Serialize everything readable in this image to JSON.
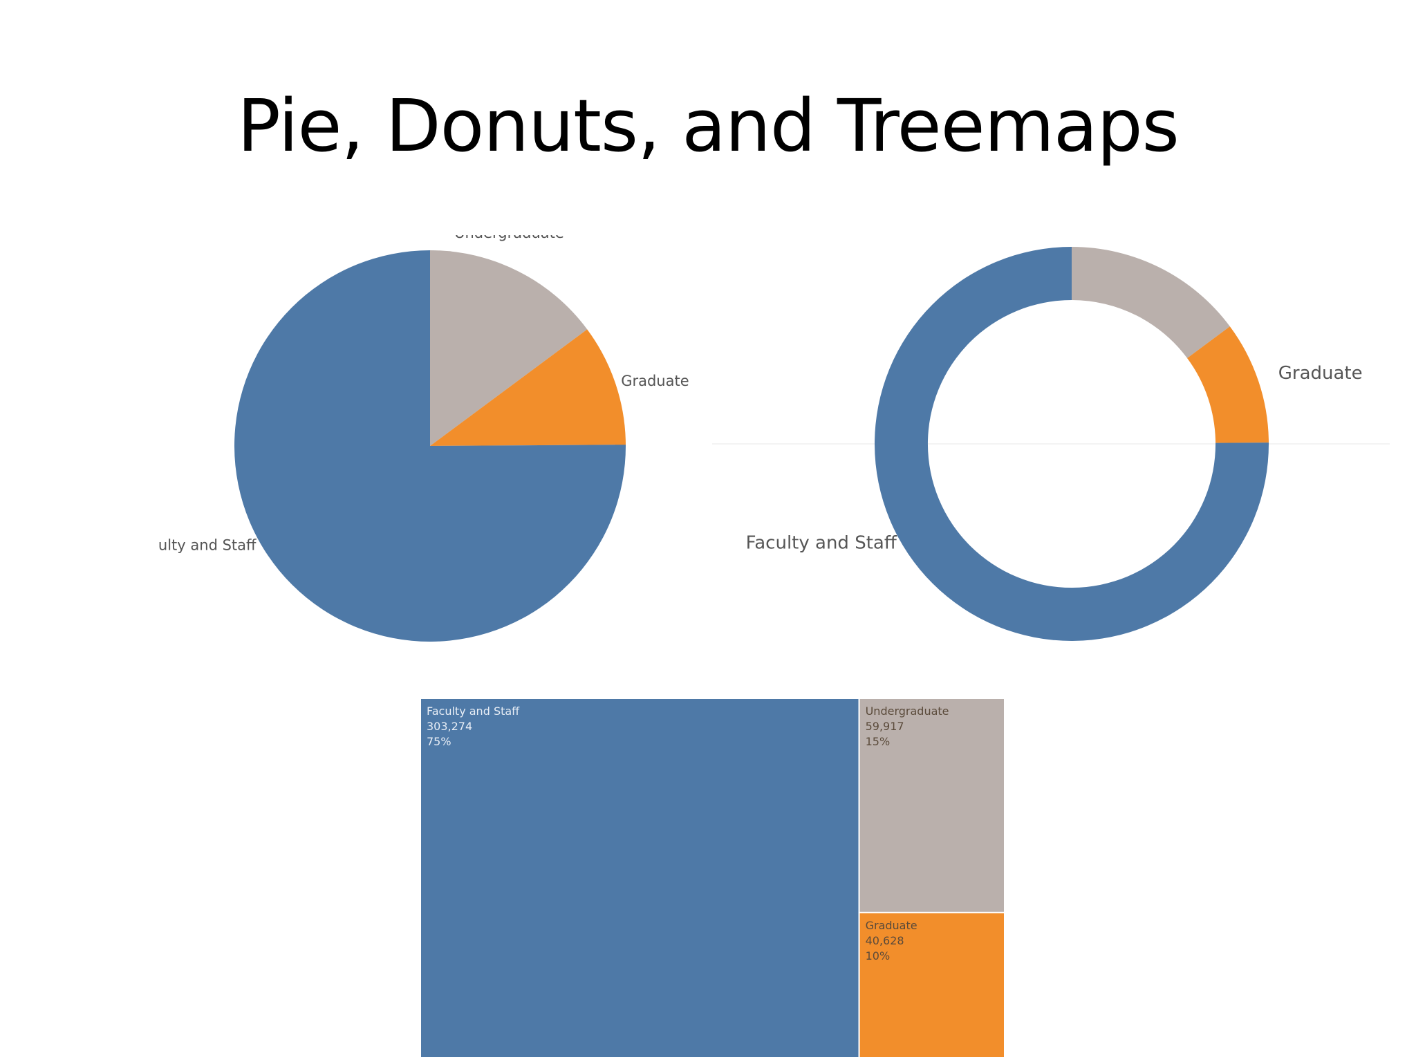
{
  "slide": {
    "title": "Pie, Donuts, and Treemaps"
  },
  "chart_data": [
    {
      "type": "pie",
      "categories": [
        "Faculty and Staff",
        "Undergraduate",
        "Graduate"
      ],
      "values": [
        303274,
        59917,
        40628
      ],
      "colors": [
        "#4e79a7",
        "#bab0ac",
        "#f28e2b"
      ],
      "start": "12 o'clock, clockwise order: Undergraduate, Graduate, Faculty and Staff"
    },
    {
      "type": "pie",
      "variant": "donut",
      "categories": [
        "Faculty and Staff",
        "Undergraduate",
        "Graduate"
      ],
      "values": [
        303274,
        59917,
        40628
      ],
      "colors": [
        "#4e79a7",
        "#bab0ac",
        "#f28e2b"
      ],
      "inner_radius_ratio": 0.73
    },
    {
      "type": "treemap",
      "categories": [
        "Faculty and Staff",
        "Undergraduate",
        "Graduate"
      ],
      "values": [
        303274,
        59917,
        40628
      ],
      "value_labels": [
        "303,274",
        "59,917",
        "40,628"
      ],
      "percent_labels": [
        "75%",
        "15%",
        "10%"
      ],
      "colors": [
        "#4e79a7",
        "#bab0ac",
        "#f28e2b"
      ]
    }
  ]
}
